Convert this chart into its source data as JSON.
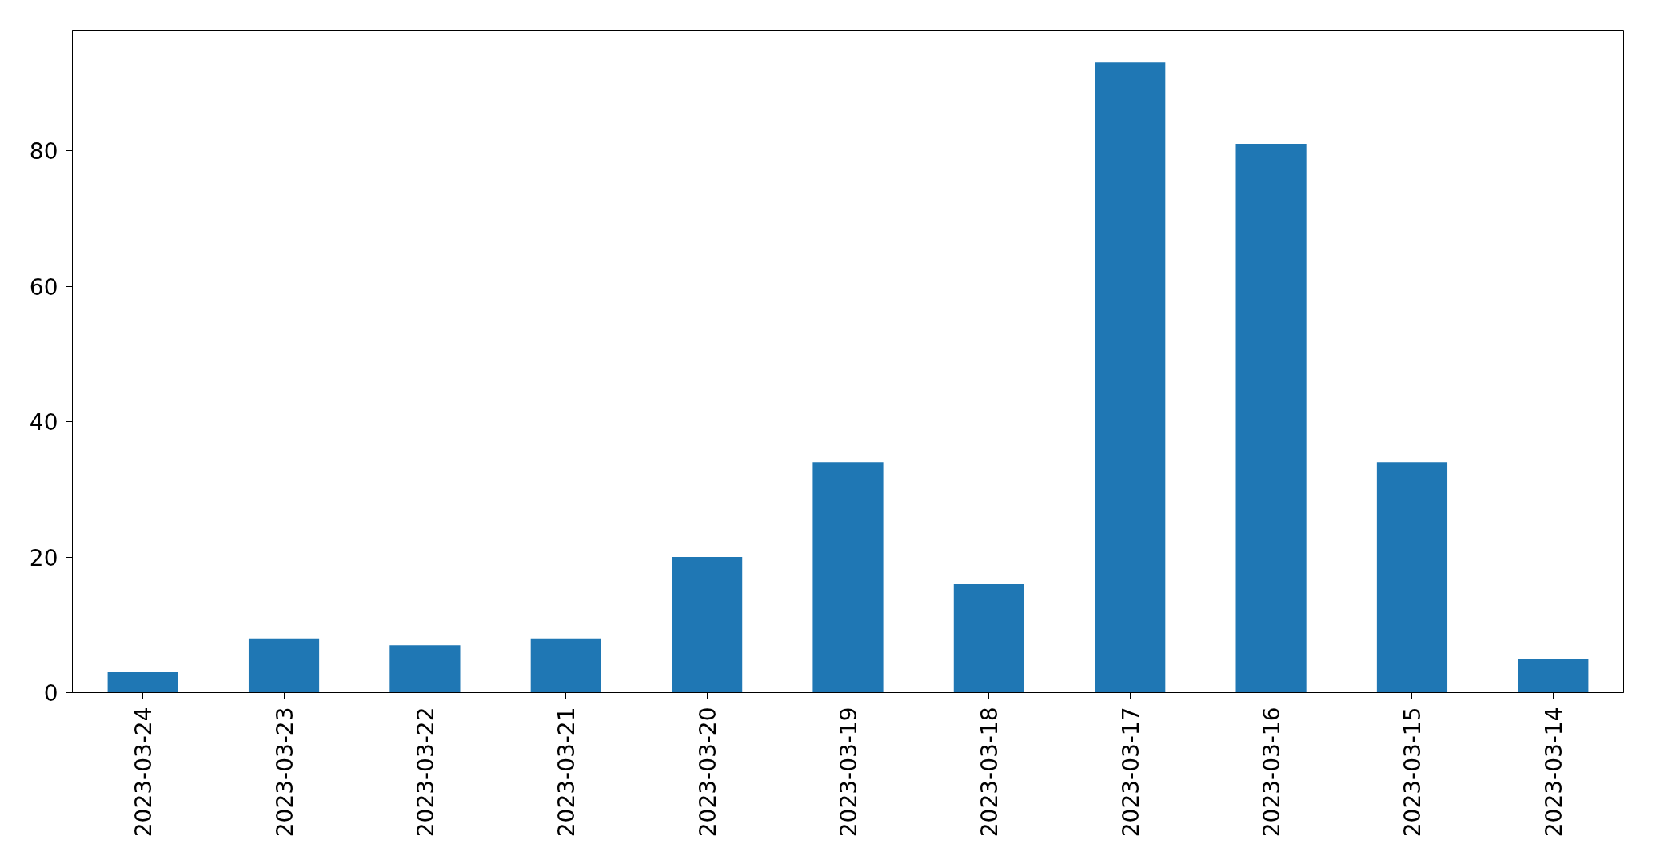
{
  "chart_data": {
    "type": "bar",
    "categories": [
      "2023-03-24",
      "2023-03-23",
      "2023-03-22",
      "2023-03-21",
      "2023-03-20",
      "2023-03-19",
      "2023-03-18",
      "2023-03-17",
      "2023-03-16",
      "2023-03-15",
      "2023-03-14"
    ],
    "values": [
      3,
      8,
      7,
      8,
      20,
      34,
      16,
      93,
      81,
      34,
      5
    ],
    "color": "#1f77b4",
    "ylim": [
      0,
      97.7
    ],
    "yticks": [
      0,
      20,
      40,
      60,
      80
    ],
    "grid": false
  }
}
